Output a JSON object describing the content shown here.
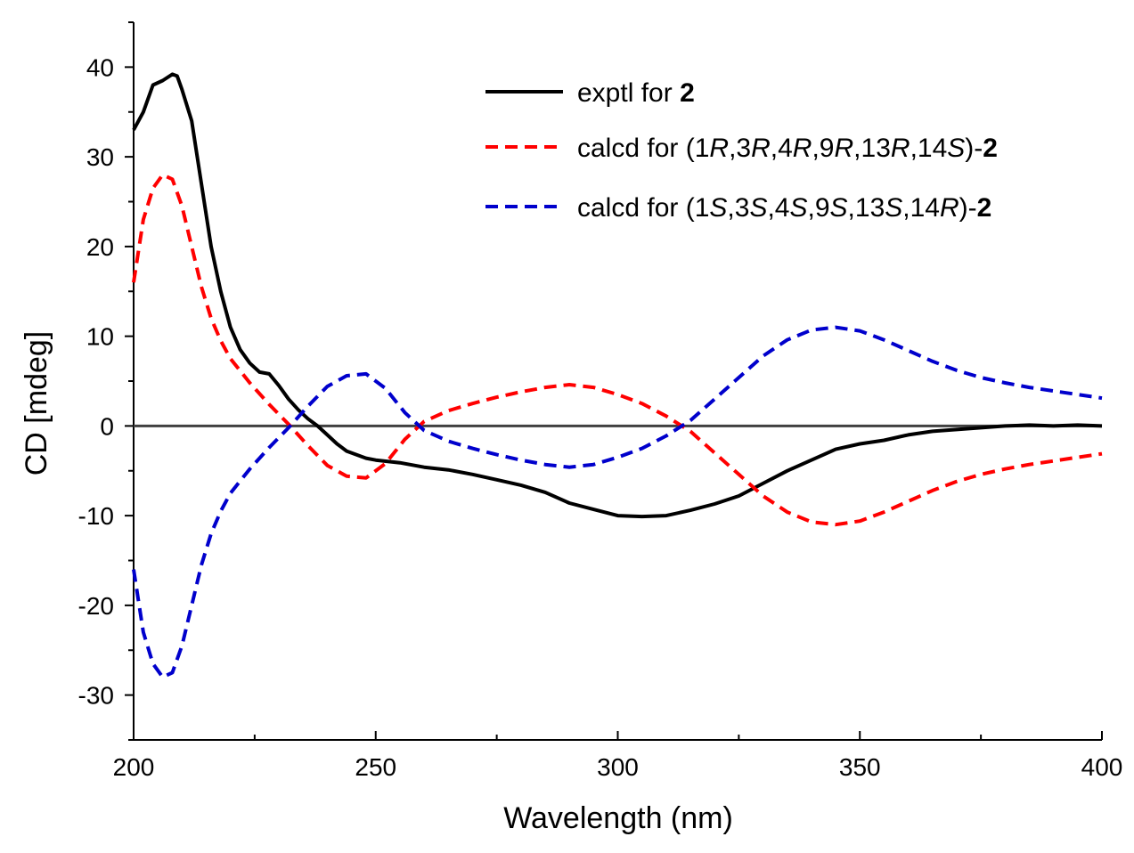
{
  "chart_data": {
    "type": "line",
    "xlabel": "Wavelength (nm)",
    "ylabel": "CD [mdeg]",
    "xlim": [
      200,
      400
    ],
    "ylim": [
      -35,
      45
    ],
    "x_ticks": [
      200,
      250,
      300,
      350,
      400
    ],
    "y_ticks": [
      -30,
      -20,
      -10,
      0,
      10,
      20,
      30,
      40
    ],
    "x_tick_labels": [
      "200",
      "250",
      "300",
      "350",
      "400"
    ],
    "y_tick_labels": [
      "-30",
      "-20",
      "-10",
      "0",
      "10",
      "20",
      "30",
      "40"
    ],
    "zero_line": true,
    "grid": false,
    "legend_position": "top-right",
    "series": [
      {
        "name": "exptl for 2",
        "legend_parts": [
          {
            "text": "exptl for ",
            "style": "normal"
          },
          {
            "text": "2",
            "style": "bold"
          }
        ],
        "color": "#000000",
        "dash": "solid",
        "x": [
          200,
          202,
          204,
          206,
          208,
          209,
          210,
          212,
          214,
          216,
          218,
          220,
          222,
          224,
          226,
          228,
          230,
          232,
          234,
          236,
          238,
          240,
          242,
          244,
          246,
          248,
          250,
          255,
          260,
          265,
          270,
          275,
          280,
          285,
          290,
          295,
          300,
          305,
          310,
          315,
          320,
          325,
          330,
          335,
          340,
          345,
          350,
          355,
          360,
          365,
          370,
          375,
          380,
          385,
          390,
          395,
          400
        ],
        "y": [
          33,
          35,
          38,
          38.5,
          39.2,
          39,
          37.5,
          34,
          27,
          20,
          15,
          11,
          8.5,
          7,
          6,
          5.8,
          4.5,
          3,
          1.8,
          0.8,
          0,
          -1,
          -2,
          -2.8,
          -3.2,
          -3.6,
          -3.8,
          -4.1,
          -4.6,
          -4.9,
          -5.4,
          -6,
          -6.6,
          -7.4,
          -8.6,
          -9.3,
          -10,
          -10.1,
          -10,
          -9.4,
          -8.7,
          -7.8,
          -6.4,
          -5,
          -3.8,
          -2.6,
          -2,
          -1.6,
          -1,
          -0.6,
          -0.4,
          -0.2,
          0,
          0.1,
          0,
          0.1,
          0
        ]
      },
      {
        "name": "calcd for (1R,3R,4R,9R,13R,14S)-2",
        "legend_parts": [
          {
            "text": "calcd for (1",
            "style": "normal"
          },
          {
            "text": "R",
            "style": "italic"
          },
          {
            "text": ",3",
            "style": "normal"
          },
          {
            "text": "R",
            "style": "italic"
          },
          {
            "text": ",4",
            "style": "normal"
          },
          {
            "text": "R",
            "style": "italic"
          },
          {
            "text": ",9",
            "style": "normal"
          },
          {
            "text": "R",
            "style": "italic"
          },
          {
            "text": ",13",
            "style": "normal"
          },
          {
            "text": "R",
            "style": "italic"
          },
          {
            "text": ",14",
            "style": "normal"
          },
          {
            "text": "S",
            "style": "italic"
          },
          {
            "text": ")-",
            "style": "normal"
          },
          {
            "text": "2",
            "style": "bold"
          }
        ],
        "color": "#ff0000",
        "dash": "dashed",
        "x": [
          200,
          202,
          204,
          206,
          208,
          210,
          212,
          214,
          216,
          218,
          220,
          224,
          228,
          232,
          236,
          240,
          244,
          248,
          252,
          256,
          260,
          265,
          270,
          275,
          280,
          285,
          290,
          295,
          300,
          305,
          310,
          315,
          320,
          325,
          330,
          335,
          340,
          345,
          350,
          355,
          360,
          365,
          370,
          375,
          380,
          385,
          390,
          395,
          400
        ],
        "y": [
          16,
          23,
          26.5,
          28,
          27.5,
          24.5,
          20,
          15.5,
          12,
          9.5,
          7.5,
          4.8,
          2.4,
          0.2,
          -2.2,
          -4.4,
          -5.6,
          -5.8,
          -4.2,
          -1.5,
          0.5,
          1.7,
          2.5,
          3.2,
          3.8,
          4.3,
          4.6,
          4.3,
          3.5,
          2.5,
          1.1,
          -0.6,
          -3,
          -5.4,
          -7.8,
          -9.6,
          -10.7,
          -11,
          -10.6,
          -9.6,
          -8.4,
          -7.2,
          -6.2,
          -5.4,
          -4.8,
          -4.3,
          -3.9,
          -3.5,
          -3.1
        ]
      },
      {
        "name": "calcd for (1S,3S,4S,9S,13S,14R)-2",
        "legend_parts": [
          {
            "text": "calcd for (1",
            "style": "normal"
          },
          {
            "text": "S",
            "style": "italic"
          },
          {
            "text": ",3",
            "style": "normal"
          },
          {
            "text": "S",
            "style": "italic"
          },
          {
            "text": ",4",
            "style": "normal"
          },
          {
            "text": "S",
            "style": "italic"
          },
          {
            "text": ",9",
            "style": "normal"
          },
          {
            "text": "S",
            "style": "italic"
          },
          {
            "text": ",13",
            "style": "normal"
          },
          {
            "text": "S",
            "style": "italic"
          },
          {
            "text": ",14",
            "style": "normal"
          },
          {
            "text": "R",
            "style": "italic"
          },
          {
            "text": ")-",
            "style": "normal"
          },
          {
            "text": "2",
            "style": "bold"
          }
        ],
        "color": "#0000cc",
        "dash": "dashed",
        "x": [
          200,
          202,
          204,
          206,
          208,
          210,
          212,
          214,
          216,
          218,
          220,
          224,
          228,
          232,
          236,
          240,
          244,
          248,
          252,
          256,
          260,
          265,
          270,
          275,
          280,
          285,
          290,
          295,
          300,
          305,
          310,
          315,
          320,
          325,
          330,
          335,
          340,
          345,
          350,
          355,
          360,
          365,
          370,
          375,
          380,
          385,
          390,
          395,
          400
        ],
        "y": [
          -16,
          -23,
          -26.5,
          -28,
          -27.5,
          -24.5,
          -20,
          -15.5,
          -12,
          -9.5,
          -7.5,
          -4.8,
          -2.4,
          -0.2,
          2.2,
          4.4,
          5.6,
          5.8,
          4.2,
          1.5,
          -0.5,
          -1.7,
          -2.5,
          -3.2,
          -3.8,
          -4.3,
          -4.6,
          -4.3,
          -3.5,
          -2.5,
          -1.1,
          0.6,
          3,
          5.4,
          7.8,
          9.6,
          10.7,
          11,
          10.6,
          9.6,
          8.4,
          7.2,
          6.2,
          5.4,
          4.8,
          4.3,
          3.9,
          3.5,
          3.1
        ]
      }
    ]
  }
}
